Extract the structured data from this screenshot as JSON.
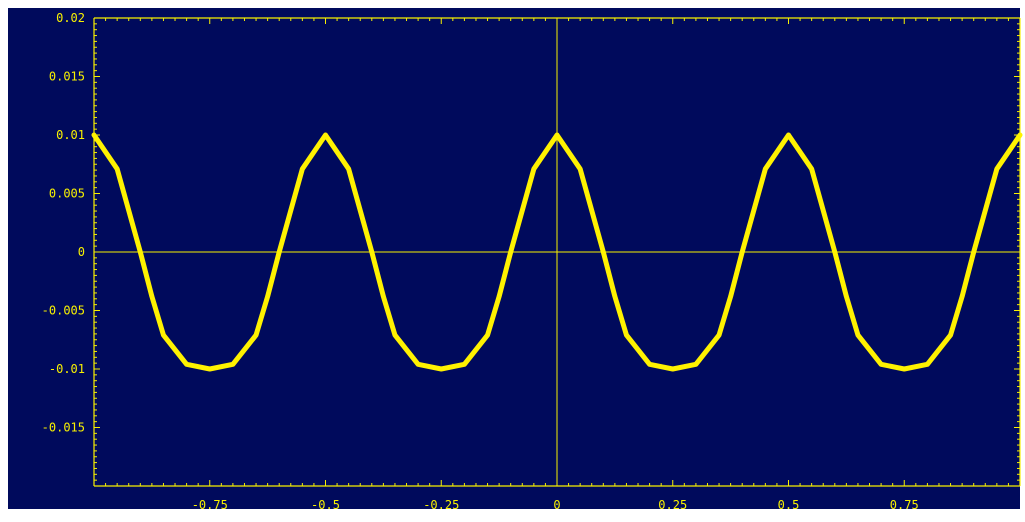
{
  "chart_data": {
    "type": "line",
    "title": "",
    "xlabel": "",
    "ylabel": "",
    "xlim": [
      -1,
      1
    ],
    "ylim": [
      -0.02,
      0.02
    ],
    "x_ticks": [
      -0.75,
      -0.5,
      -0.25,
      0,
      0.25,
      0.5,
      0.75
    ],
    "x_tick_labels": [
      "-0.75",
      "-0.5",
      "-0.25",
      "0",
      "0.25",
      "0.5",
      "0.75"
    ],
    "y_ticks": [
      0.02,
      0.015,
      0.01,
      0.005,
      0,
      -0.005,
      -0.01,
      -0.015
    ],
    "y_tick_labels": [
      "0.02",
      "0.015",
      "0.01",
      "0.005",
      "0",
      "-0.005",
      "-0.01",
      "-0.015"
    ],
    "grid": false,
    "colors": {
      "background": "#000a5c",
      "axes": "#f8f100",
      "series": "#fff200"
    },
    "series": [
      {
        "x": [
          -1,
          -0.95,
          -0.9,
          -0.875,
          -0.85,
          -0.8,
          -0.75,
          -0.7,
          -0.65,
          -0.625,
          -0.6,
          -0.55,
          -0.5,
          -0.45,
          -0.4,
          -0.375,
          -0.35,
          -0.3,
          -0.25,
          -0.2,
          -0.15,
          -0.125,
          -0.1,
          -0.05,
          0,
          0.05,
          0.1,
          0.125,
          0.15,
          0.2,
          0.25,
          0.3,
          0.35,
          0.375,
          0.4,
          0.45,
          0.5,
          0.55,
          0.6,
          0.625,
          0.65,
          0.7,
          0.75,
          0.8,
          0.85,
          0.875,
          0.9,
          0.95,
          1
        ],
        "y": [
          0.01,
          0.0071,
          0,
          -0.0038,
          -0.0071,
          -0.0096,
          -0.01,
          -0.0096,
          -0.0071,
          -0.0038,
          0,
          0.0071,
          0.01,
          0.0071,
          0,
          -0.0038,
          -0.0071,
          -0.0096,
          -0.01,
          -0.0096,
          -0.0071,
          -0.0038,
          0,
          0.0071,
          0.01,
          0.0071,
          0,
          -0.0038,
          -0.0071,
          -0.0096,
          -0.01,
          -0.0096,
          -0.0071,
          -0.0038,
          0,
          0.0071,
          0.01,
          0.0071,
          0,
          -0.0038,
          -0.0071,
          -0.0096,
          -0.01,
          -0.0096,
          -0.0071,
          -0.0038,
          0,
          0.0071,
          0.01
        ]
      }
    ]
  }
}
